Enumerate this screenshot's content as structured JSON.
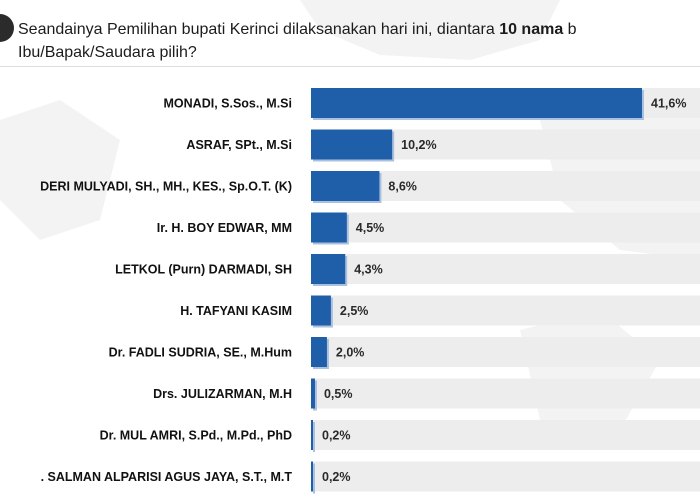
{
  "question": {
    "text_before": "Seandainya Pemilihan bupati Kerinci dilaksanakan hari ini, diantara ",
    "text_bold": "10 nama",
    "text_after": " b",
    "line2": "Ibu/Bapak/Saudara pilih?"
  },
  "colors": {
    "bar": "#1f5ea8",
    "bar_shadow": "#a9c1de",
    "track": "#ededed"
  },
  "chart_data": {
    "type": "bar",
    "orientation": "horizontal",
    "categories": [
      "MONADI, S.Sos., M.Si",
      "ASRAF, SPt., M.Si",
      "DERI MULYADI, SH., MH., KES., Sp.O.T. (K)",
      "Ir. H. BOY EDWAR, MM",
      "LETKOL (Purn) DARMADI, SH",
      "H. TAFYANI KASIM",
      "Dr. FADLI SUDRIA, SE., M.Hum",
      "Drs. JULIZARMAN, M.H",
      "Dr. MUL AMRI, S.Pd., M.Pd., PhD",
      ". SALMAN ALPARISI AGUS JAYA, S.T., M.T"
    ],
    "values": [
      41.6,
      10.2,
      8.6,
      4.5,
      4.3,
      2.5,
      2.0,
      0.5,
      0.2,
      0.2
    ],
    "value_labels": [
      "41,6%",
      "10,2%",
      "8,6%",
      "4,5%",
      "4,3%",
      "2,5%",
      "2,0%",
      "0,5%",
      "0,2%",
      "0,2%"
    ],
    "xlim": [
      0,
      41.6
    ],
    "grid": false,
    "legend": "none"
  }
}
